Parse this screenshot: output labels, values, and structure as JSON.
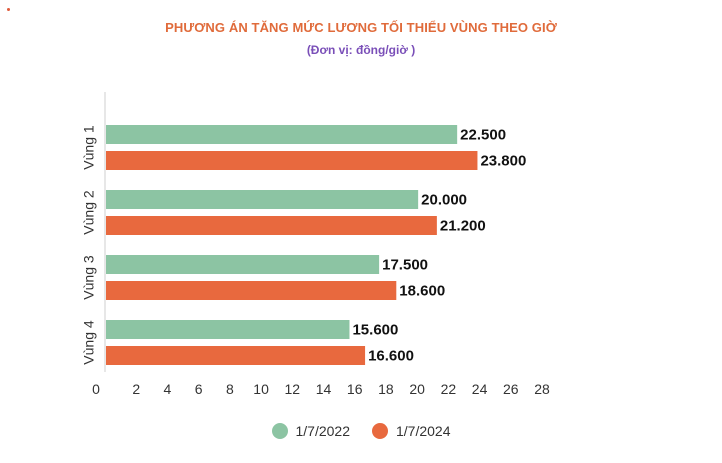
{
  "title": "PHƯƠNG ÁN TĂNG MỨC LƯƠNG TỐI THIỂU VÙNG THEO GIỜ",
  "subtitle": "(Đơn vị: đồng/giờ )",
  "colors": {
    "series1": "#8cc4a3",
    "series2": "#e8693e",
    "title": "#e06b3b",
    "subtitle": "#7a4fb8"
  },
  "chart_data": {
    "type": "bar",
    "orientation": "horizontal",
    "categories": [
      "Vùng 1",
      "Vùng 2",
      "Vùng 3",
      "Vùng 4"
    ],
    "series": [
      {
        "name": "1/7/2022",
        "values": [
          22500,
          20000,
          17500,
          15600
        ],
        "labels": [
          "22.500",
          "20.000",
          "17.500",
          "15.600"
        ]
      },
      {
        "name": "1/7/2024",
        "values": [
          23800,
          21200,
          18600,
          16600
        ],
        "labels": [
          "23.800",
          "21.200",
          "18.600",
          "16.600"
        ]
      }
    ],
    "xlim": [
      0,
      28000
    ],
    "xticks": [
      "0",
      "2",
      "4",
      "6",
      "8",
      "10",
      "12",
      "14",
      "16",
      "18",
      "20",
      "22",
      "24",
      "26",
      "28"
    ],
    "grid": false,
    "legend_position": "bottom"
  }
}
